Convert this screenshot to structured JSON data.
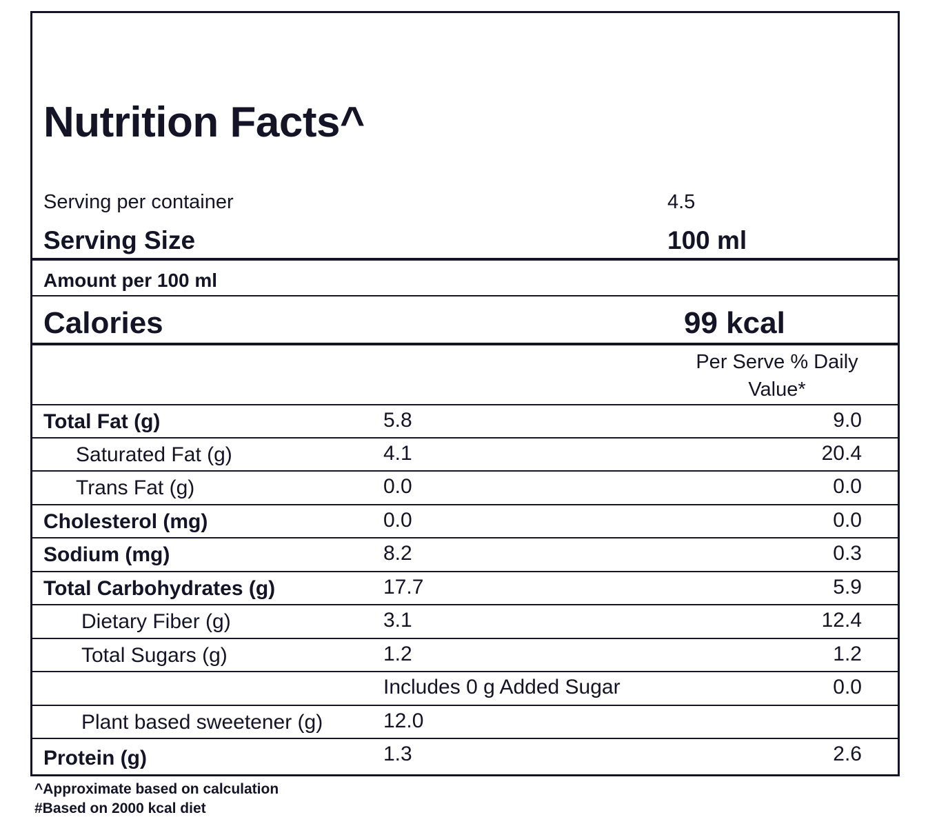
{
  "title": "Nutrition Facts^",
  "servings": {
    "label": "Serving per container",
    "value": "4.5"
  },
  "serving_size": {
    "label": "Serving Size",
    "value": "100  ml"
  },
  "amount_per": "Amount per 100 ml",
  "calories": {
    "label": "Calories",
    "value": "99 kcal"
  },
  "dv_header": {
    "line1": "Per Serve % Daily",
    "line2": "Value*"
  },
  "nutrients": [
    {
      "name": "Total Fat (g)",
      "amount": "5.8",
      "dv": "9.0"
    },
    {
      "name": "Saturated Fat (g)",
      "amount": "4.1",
      "dv": "20.4"
    },
    {
      "name": "Trans Fat (g)",
      "amount": "0.0",
      "dv": "0.0"
    },
    {
      "name": "Cholesterol (mg)",
      "amount": "0.0",
      "dv": "0.0"
    },
    {
      "name": "Sodium (mg)",
      "amount": "8.2",
      "dv": "0.3"
    },
    {
      "name": "Total Carbohydrates (g)",
      "amount": "17.7",
      "dv": "5.9"
    },
    {
      "name": "Dietary Fiber (g)",
      "amount": "3.1",
      "dv": "12.4"
    },
    {
      "name": "Total Sugars (g)",
      "amount": "1.2",
      "dv": "1.2"
    },
    {
      "name": "",
      "amount": "Includes 0 g Added Sugar",
      "dv": "0.0"
    },
    {
      "name": "Plant based sweetener (g)",
      "amount": "12.0",
      "dv": ""
    },
    {
      "name": "Protein (g)",
      "amount": "1.3",
      "dv": "2.6"
    }
  ],
  "footnotes": {
    "approx": "^Approximate based on calculation",
    "basis": "#Based on 2000 kcal diet"
  }
}
